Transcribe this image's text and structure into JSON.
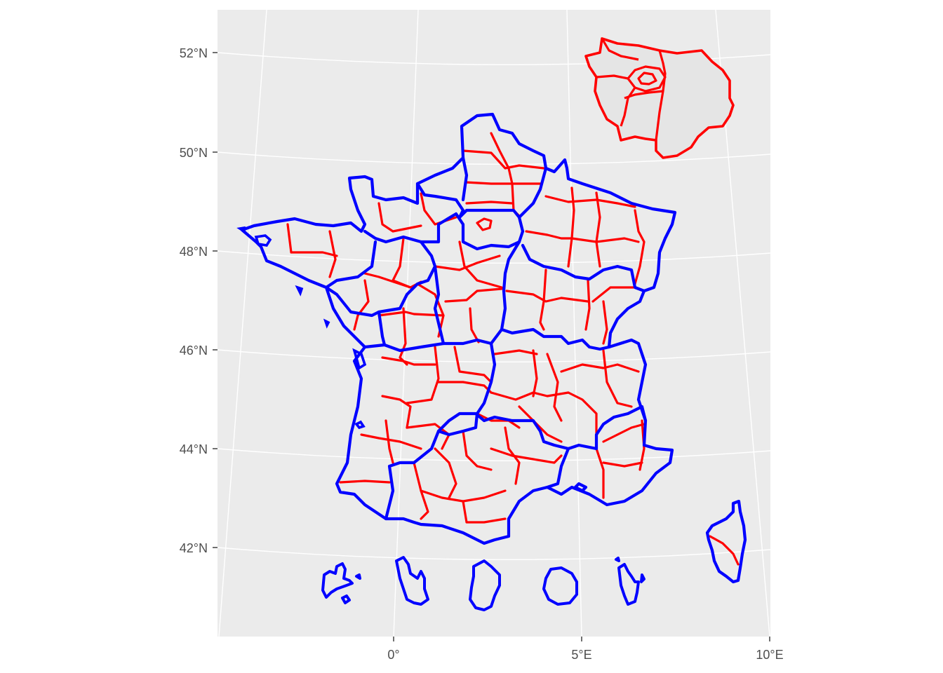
{
  "map": {
    "axis_labels": {
      "lat": [
        "52°N",
        "50°N",
        "48°N",
        "46°N",
        "44°N",
        "42°N"
      ],
      "lon": [
        "0°",
        "5°E",
        "10°E"
      ]
    },
    "colors": {
      "panel": "#ebebeb",
      "grid": "#ffffff",
      "region_border": "#0000ff",
      "department_border": "#ff0000",
      "inset_fill": "#e5e5e5",
      "tick_text": "#4d4d4d"
    },
    "layers": [
      "regions",
      "departments",
      "paris-inset",
      "overseas-territories"
    ]
  }
}
